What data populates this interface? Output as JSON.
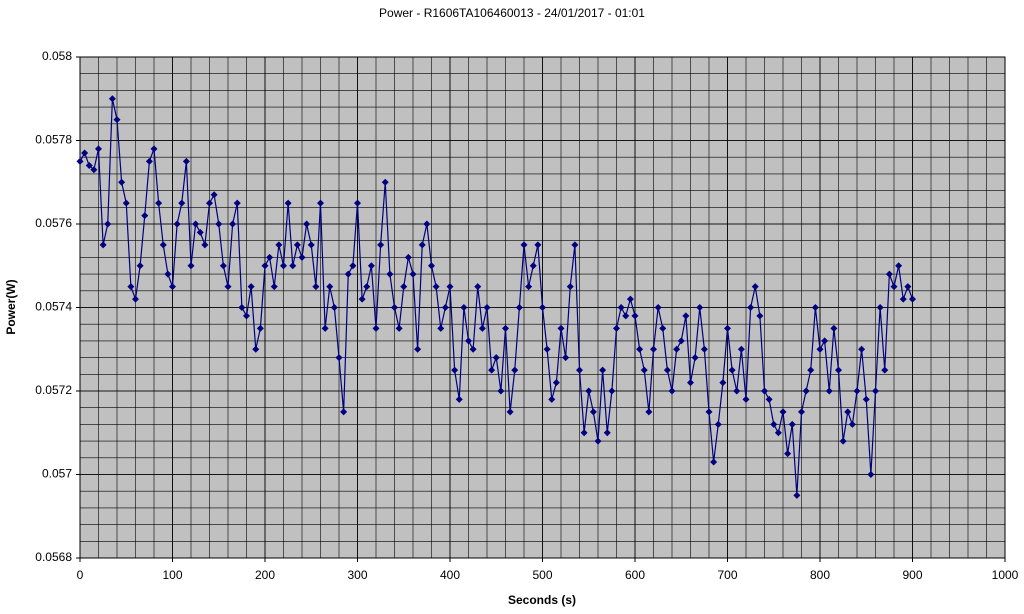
{
  "chart_data": {
    "type": "line",
    "title": "Power - R1606TA106460013 - 24/01/2017 - 01:01",
    "x_label": "Seconds (s)",
    "y_label": "Power(W)",
    "xlim": [
      0,
      1000
    ],
    "xticks": [
      0,
      100,
      200,
      300,
      400,
      500,
      600,
      700,
      800,
      900,
      1000
    ],
    "ylim": [
      0.0568,
      0.058
    ],
    "yticks": [
      0.0568,
      0.057,
      0.0572,
      0.0574,
      0.0576,
      0.0578,
      0.058
    ],
    "grid": true,
    "minor_grid": {
      "x": 20,
      "y": 4e-05
    },
    "background": "#c0c0c0",
    "x": [
      0,
      5,
      10,
      15,
      20,
      25,
      30,
      35,
      40,
      45,
      50,
      55,
      60,
      65,
      70,
      75,
      80,
      85,
      90,
      95,
      100,
      105,
      110,
      115,
      120,
      125,
      130,
      135,
      140,
      145,
      150,
      155,
      160,
      165,
      170,
      175,
      180,
      185,
      190,
      195,
      200,
      205,
      210,
      215,
      220,
      225,
      230,
      235,
      240,
      245,
      250,
      255,
      260,
      265,
      270,
      275,
      280,
      285,
      290,
      295,
      300,
      305,
      310,
      315,
      320,
      325,
      330,
      335,
      340,
      345,
      350,
      355,
      360,
      365,
      370,
      375,
      380,
      385,
      390,
      395,
      400,
      405,
      410,
      415,
      420,
      425,
      430,
      435,
      440,
      445,
      450,
      455,
      460,
      465,
      470,
      475,
      480,
      485,
      490,
      495,
      500,
      505,
      510,
      515,
      520,
      525,
      530,
      535,
      540,
      545,
      550,
      555,
      560,
      565,
      570,
      575,
      580,
      585,
      590,
      595,
      600,
      605,
      610,
      615,
      620,
      625,
      630,
      635,
      640,
      645,
      650,
      655,
      660,
      665,
      670,
      675,
      680,
      685,
      690,
      695,
      700,
      705,
      710,
      715,
      720,
      725,
      730,
      735,
      740,
      745,
      750,
      755,
      760,
      765,
      770,
      775,
      780,
      785,
      790,
      795,
      800,
      805,
      810,
      815,
      820,
      825,
      830,
      835,
      840,
      845,
      850,
      855,
      860,
      865,
      870,
      875,
      880,
      885,
      890,
      895,
      900
    ],
    "series": [
      {
        "color": "#000080",
        "values": [
          0.05775,
          0.05777,
          0.05774,
          0.05773,
          0.05778,
          0.05755,
          0.0576,
          0.0579,
          0.05785,
          0.0577,
          0.05765,
          0.05745,
          0.05742,
          0.0575,
          0.05762,
          0.05775,
          0.05778,
          0.05765,
          0.05755,
          0.05748,
          0.05745,
          0.0576,
          0.05765,
          0.05775,
          0.0575,
          0.0576,
          0.05758,
          0.05755,
          0.05765,
          0.05767,
          0.0576,
          0.0575,
          0.05745,
          0.0576,
          0.05765,
          0.0574,
          0.05738,
          0.05745,
          0.0573,
          0.05735,
          0.0575,
          0.05752,
          0.05745,
          0.05755,
          0.0575,
          0.05765,
          0.0575,
          0.05755,
          0.05752,
          0.0576,
          0.05755,
          0.05745,
          0.05765,
          0.05735,
          0.05745,
          0.0574,
          0.05728,
          0.05715,
          0.05748,
          0.0575,
          0.05765,
          0.05742,
          0.05745,
          0.0575,
          0.05735,
          0.05755,
          0.0577,
          0.05748,
          0.0574,
          0.05735,
          0.05745,
          0.05752,
          0.05748,
          0.0573,
          0.05755,
          0.0576,
          0.0575,
          0.05745,
          0.05735,
          0.0574,
          0.05745,
          0.05725,
          0.05718,
          0.0574,
          0.05732,
          0.0573,
          0.05745,
          0.05735,
          0.0574,
          0.05725,
          0.05728,
          0.0572,
          0.05735,
          0.05715,
          0.05725,
          0.0574,
          0.05755,
          0.05745,
          0.0575,
          0.05755,
          0.0574,
          0.0573,
          0.05718,
          0.05722,
          0.05735,
          0.05728,
          0.05745,
          0.05755,
          0.05725,
          0.0571,
          0.0572,
          0.05715,
          0.05708,
          0.05725,
          0.0571,
          0.0572,
          0.05735,
          0.0574,
          0.05738,
          0.05742,
          0.05738,
          0.0573,
          0.05725,
          0.05715,
          0.0573,
          0.0574,
          0.05735,
          0.05725,
          0.0572,
          0.0573,
          0.05732,
          0.05738,
          0.05722,
          0.05728,
          0.0574,
          0.0573,
          0.05715,
          0.05703,
          0.05712,
          0.05722,
          0.05735,
          0.05725,
          0.0572,
          0.0573,
          0.05718,
          0.0574,
          0.05745,
          0.05738,
          0.0572,
          0.05718,
          0.05712,
          0.0571,
          0.05715,
          0.05705,
          0.05712,
          0.05695,
          0.05715,
          0.0572,
          0.05725,
          0.0574,
          0.0573,
          0.05732,
          0.0572,
          0.05735,
          0.05725,
          0.05708,
          0.05715,
          0.05712,
          0.0572,
          0.0573,
          0.05718,
          0.057,
          0.0572,
          0.0574,
          0.05725,
          0.05748,
          0.05745,
          0.0575,
          0.05742,
          0.05745,
          0.05742
        ]
      }
    ]
  }
}
